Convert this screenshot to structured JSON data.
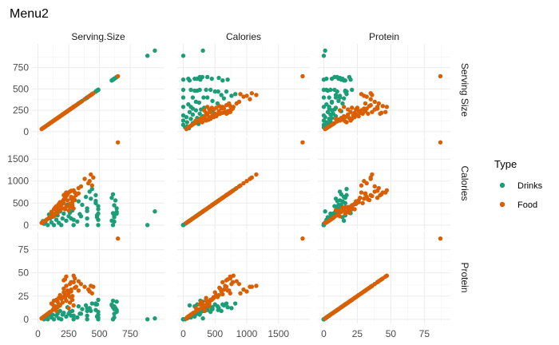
{
  "chart_data": {
    "type": "scatter",
    "title": "Menu2",
    "variables": [
      "Serving.Size",
      "Calories",
      "Protein"
    ],
    "col_strips": [
      "Serving.Size",
      "Calories",
      "Protein"
    ],
    "row_strips": [
      "Serving Size",
      "Calories",
      "Protein"
    ],
    "ranges": {
      "Serving.Size": [
        0,
        980
      ],
      "Calories": [
        0,
        1900
      ],
      "Protein": [
        0,
        90
      ]
    },
    "ticks": {
      "Serving.Size": [
        0,
        250,
        500,
        750
      ],
      "Calories": [
        0,
        500,
        1000,
        1500
      ],
      "Protein": [
        0,
        25,
        50,
        75
      ]
    },
    "grid": true,
    "legend": {
      "title": "Type",
      "position": "right",
      "items": [
        {
          "label": "Drinks",
          "color": "#1b9e77"
        },
        {
          "label": "Food",
          "color": "#d95f02"
        }
      ]
    },
    "series": [
      {
        "name": "Drinks",
        "color": "#1b9e77",
        "points": [
          [
            890,
            0,
            0
          ],
          [
            950,
            310,
            1
          ],
          [
            490,
            0,
            0
          ],
          [
            490,
            120,
            2
          ],
          [
            490,
            260,
            5
          ],
          [
            490,
            430,
            8
          ],
          [
            480,
            180,
            3
          ],
          [
            470,
            550,
            10
          ],
          [
            400,
            0,
            0
          ],
          [
            400,
            150,
            4
          ],
          [
            400,
            320,
            9
          ],
          [
            400,
            380,
            12
          ],
          [
            390,
            640,
            15
          ],
          [
            360,
            460,
            11
          ],
          [
            350,
            200,
            6
          ],
          [
            340,
            250,
            6
          ],
          [
            330,
            540,
            14
          ],
          [
            320,
            80,
            2
          ],
          [
            290,
            0,
            0
          ],
          [
            290,
            120,
            4
          ],
          [
            280,
            330,
            9
          ],
          [
            270,
            150,
            4
          ],
          [
            260,
            280,
            8
          ],
          [
            250,
            200,
            6
          ],
          [
            240,
            460,
            13
          ],
          [
            230,
            100,
            3
          ],
          [
            210,
            260,
            7
          ],
          [
            200,
            150,
            5
          ],
          [
            190,
            0,
            0
          ],
          [
            180,
            310,
            9
          ],
          [
            170,
            50,
            1
          ],
          [
            160,
            220,
            6
          ],
          [
            150,
            120,
            4
          ],
          [
            140,
            380,
            11
          ],
          [
            130,
            0,
            0
          ],
          [
            120,
            190,
            5
          ],
          [
            110,
            60,
            2
          ],
          [
            100,
            150,
            4
          ],
          [
            90,
            240,
            7
          ],
          [
            80,
            0,
            0
          ],
          [
            70,
            120,
            3
          ],
          [
            60,
            60,
            1
          ],
          [
            50,
            30,
            0
          ],
          [
            40,
            90,
            2
          ],
          [
            640,
            380,
            10
          ],
          [
            630,
            560,
            12
          ],
          [
            620,
            220,
            6
          ],
          [
            620,
            80,
            2
          ],
          [
            640,
            260,
            8
          ],
          [
            610,
            700,
            13
          ],
          [
            600,
            620,
            16
          ],
          [
            610,
            0,
            0
          ],
          [
            620,
            450,
            11
          ],
          [
            420,
            760,
            12
          ],
          [
            430,
            600,
            9
          ],
          [
            440,
            820,
            17
          ],
          [
            470,
            500,
            16
          ],
          [
            490,
            360,
            21
          ],
          [
            640,
            300,
            19
          ],
          [
            620,
            180,
            14
          ],
          [
            610,
            270,
            20
          ],
          [
            600,
            100,
            15
          ],
          [
            480,
            220,
            16
          ],
          [
            470,
            680,
            17
          ]
        ]
      },
      {
        "name": "Food",
        "color": "#d95f02",
        "points": [
          [
            650,
            1880,
            87
          ],
          [
            110,
            300,
            17
          ],
          [
            130,
            360,
            20
          ],
          [
            140,
            400,
            14
          ],
          [
            150,
            430,
            21
          ],
          [
            170,
            480,
            23
          ],
          [
            180,
            520,
            26
          ],
          [
            200,
            540,
            24
          ],
          [
            210,
            580,
            33
          ],
          [
            220,
            620,
            27
          ],
          [
            230,
            660,
            36
          ],
          [
            240,
            700,
            31
          ],
          [
            250,
            740,
            28
          ],
          [
            260,
            760,
            38
          ],
          [
            270,
            600,
            30
          ],
          [
            280,
            520,
            25
          ],
          [
            290,
            620,
            40
          ],
          [
            300,
            570,
            34
          ],
          [
            260,
            480,
            24
          ],
          [
            230,
            420,
            20
          ],
          [
            200,
            380,
            18
          ],
          [
            180,
            340,
            15
          ],
          [
            160,
            300,
            13
          ],
          [
            140,
            260,
            11
          ],
          [
            120,
            220,
            10
          ],
          [
            100,
            190,
            8
          ],
          [
            90,
            160,
            7
          ],
          [
            80,
            140,
            6
          ],
          [
            70,
            120,
            5
          ],
          [
            60,
            100,
            4
          ],
          [
            50,
            80,
            3
          ],
          [
            40,
            60,
            2
          ],
          [
            30,
            50,
            1
          ],
          [
            190,
            460,
            22
          ],
          [
            210,
            500,
            29
          ],
          [
            240,
            560,
            26
          ],
          [
            270,
            640,
            32
          ],
          [
            310,
            680,
            35
          ],
          [
            330,
            720,
            31
          ],
          [
            260,
            410,
            18
          ],
          [
            220,
            360,
            23
          ],
          [
            280,
            450,
            21
          ],
          [
            290,
            380,
            15
          ],
          [
            250,
            330,
            12
          ],
          [
            170,
            410,
            16
          ],
          [
            430,
            1150,
            36
          ],
          [
            450,
            1080,
            35
          ],
          [
            420,
            1000,
            30
          ],
          [
            410,
            950,
            32
          ],
          [
            440,
            900,
            28
          ],
          [
            220,
            700,
            43
          ],
          [
            230,
            740,
            46
          ],
          [
            290,
            790,
            47
          ],
          [
            270,
            780,
            40
          ],
          [
            300,
            740,
            44
          ],
          [
            210,
            680,
            42
          ],
          [
            380,
            1050,
            35
          ],
          [
            350,
            880,
            38
          ],
          [
            330,
            840,
            41
          ],
          [
            120,
            260,
            16
          ],
          [
            130,
            200,
            12
          ],
          [
            150,
            340,
            9
          ],
          [
            160,
            280,
            19
          ]
        ]
      }
    ]
  }
}
